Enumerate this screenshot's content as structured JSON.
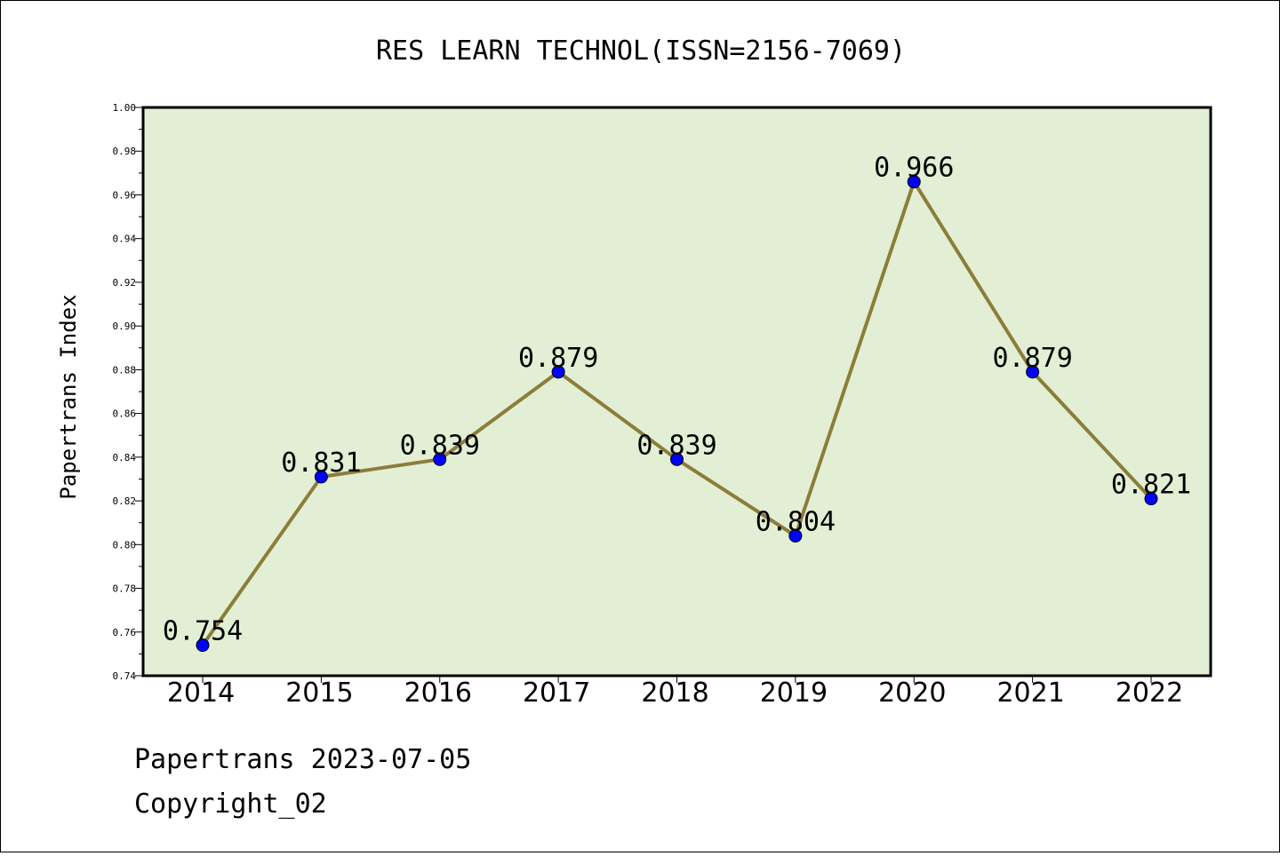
{
  "chart_data": {
    "type": "line",
    "title": "RES LEARN TECHNOL(ISSN=2156-7069)",
    "ylabel": "Papertrans Index",
    "xlabel": "",
    "categories": [
      "2014",
      "2015",
      "2016",
      "2017",
      "2018",
      "2019",
      "2020",
      "2021",
      "2022"
    ],
    "values": [
      0.754,
      0.831,
      0.839,
      0.879,
      0.839,
      0.804,
      0.966,
      0.879,
      0.821
    ],
    "data_labels": [
      "0.754",
      "0.831",
      "0.839",
      "0.879",
      "0.839",
      "0.804",
      "0.966",
      "0.879",
      "0.821"
    ],
    "ylim": [
      0.74,
      1.0
    ],
    "yticks": [
      "0.74",
      "0.76",
      "0.78",
      "0.80",
      "0.82",
      "0.84",
      "0.86",
      "0.88",
      "0.90",
      "0.92",
      "0.94",
      "0.96",
      "0.98",
      "1.00"
    ],
    "grid": false,
    "colors": {
      "plot_background": "#e2efd4",
      "line": "#8b7d3a",
      "marker": "#0000ff"
    }
  },
  "footer": {
    "line1": "Papertrans 2023-07-05",
    "line2": "Copyright_02"
  }
}
